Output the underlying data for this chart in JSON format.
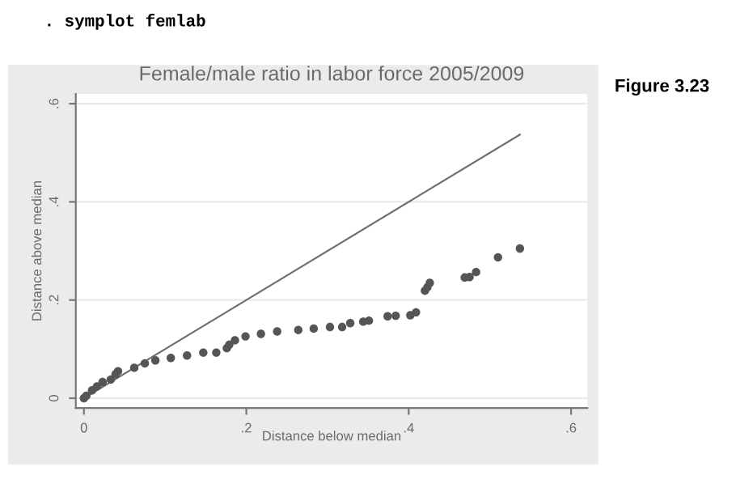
{
  "chart_data": {
    "type": "scatter",
    "title": "Female/male ratio in labor force 2005/2009",
    "xlabel": "Distance below median",
    "ylabel": "Distance above median",
    "annotations": [
      ". symplot femlab",
      "Figure 3.23"
    ],
    "series": [
      {
        "color": "#555555",
        "marker": "circle",
        "x": [
          0,
          0.003,
          0.01,
          0.016,
          0.023,
          0.033,
          0.039,
          0.042,
          0.062,
          0.075,
          0.088,
          0.107,
          0.127,
          0.147,
          0.163,
          0.176,
          0.179,
          0.186,
          0.199,
          0.218,
          0.238,
          0.264,
          0.283,
          0.303,
          0.318,
          0.328,
          0.344,
          0.351,
          0.374,
          0.384,
          0.402,
          0.409,
          0.42,
          0.423,
          0.426,
          0.469,
          0.475,
          0.483,
          0.51,
          0.537
        ],
        "values": [
          0,
          0.005,
          0.016,
          0.024,
          0.033,
          0.038,
          0.049,
          0.055,
          0.062,
          0.071,
          0.077,
          0.082,
          0.087,
          0.093,
          0.093,
          0.102,
          0.109,
          0.118,
          0.126,
          0.131,
          0.136,
          0.139,
          0.142,
          0.145,
          0.145,
          0.153,
          0.156,
          0.158,
          0.167,
          0.168,
          0.169,
          0.175,
          0.219,
          0.226,
          0.235,
          0.246,
          0.247,
          0.257,
          0.287,
          0.305
        ]
      },
      {
        "type": "line",
        "marker": "none",
        "color": "#707070",
        "x": [
          0,
          0.537
        ],
        "values": [
          0,
          0.537
        ]
      }
    ],
    "xlim": [
      -0.01,
      0.62
    ],
    "ylim": [
      -0.02,
      0.62
    ],
    "xticks": [
      {
        "value": 0,
        "label": "0"
      },
      {
        "value": 0.2,
        "label": ".2"
      },
      {
        "value": 0.4,
        "label": ".4"
      },
      {
        "value": 0.6,
        "label": ".6"
      }
    ],
    "yticks": [
      {
        "value": 0,
        "label": "0"
      },
      {
        "value": 0.2,
        "label": ".2"
      },
      {
        "value": 0.4,
        "label": ".4"
      },
      {
        "value": 0.6,
        "label": ".6"
      }
    ],
    "grid": "y",
    "line_style": "solid"
  }
}
